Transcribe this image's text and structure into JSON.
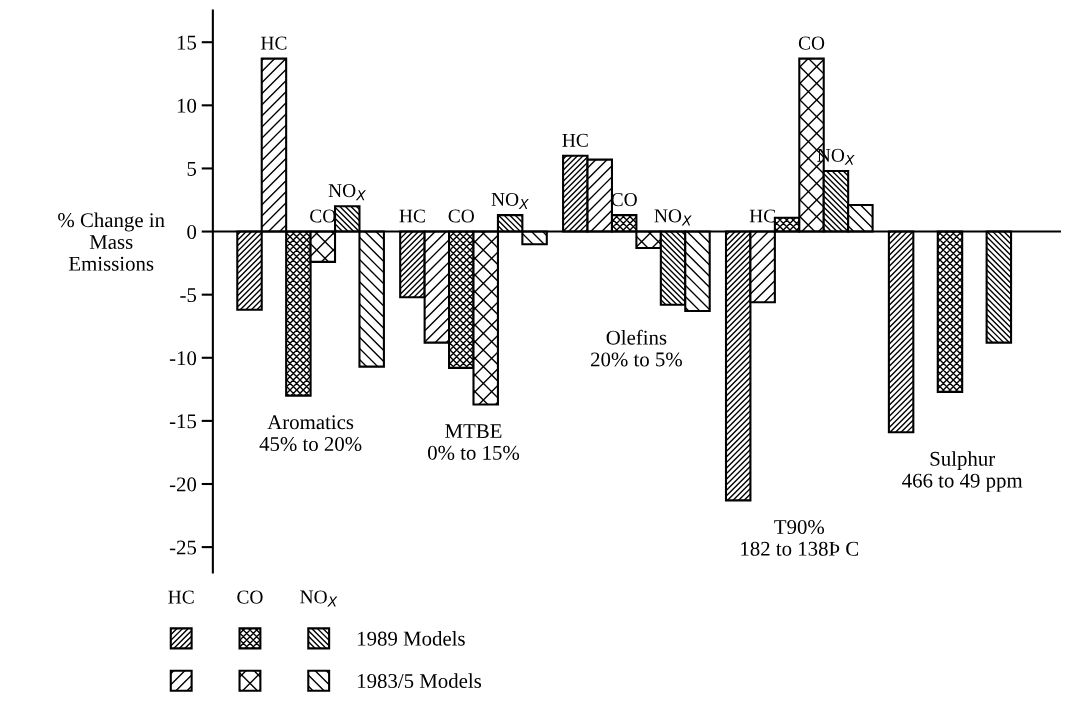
{
  "chart_data": {
    "type": "bar",
    "ylabel": "% Change in\nMass\nEmissions",
    "categories": [
      "Aromatics\n45% to 20%",
      "MTBE\n0% to 15%",
      "Olefins\n20% to 5%",
      "T90%\n182 to 138Þ C",
      "Sulphur\n466 to 49 ppm"
    ],
    "series": [
      {
        "color": "#000000",
        "values": [
          -6.2,
          -5.2,
          6.0,
          -21.3,
          -15.9
        ],
        "value_labels": [
          null,
          "HC",
          "HC",
          null,
          null
        ]
      },
      {
        "color": "#000000",
        "values": [
          13.7,
          -8.8,
          5.7,
          -5.6,
          null
        ],
        "value_labels": [
          "HC",
          null,
          null,
          "HC",
          null
        ]
      },
      {
        "color": "#000000",
        "values": [
          -13.0,
          -10.8,
          1.3,
          1.1,
          -12.7
        ],
        "value_labels": [
          null,
          "CO",
          "CO",
          null,
          null
        ]
      },
      {
        "color": "#000000",
        "values": [
          -2.4,
          -13.7,
          -1.3,
          13.7,
          null
        ],
        "value_labels": [
          "CO",
          null,
          null,
          "CO",
          null
        ]
      },
      {
        "name": "1989 Models",
        "color": "#000000",
        "values": [
          2.0,
          1.3,
          -5.8,
          4.8,
          -8.8
        ],
        "value_labels": [
          "NO$_{X}$",
          "NO$_{X}$",
          "NO$_{X}$",
          "NO$_{X}$",
          null
        ]
      },
      {
        "name": "1983/5 Models",
        "color": "#000000",
        "values": [
          -10.7,
          -1.0,
          -6.3,
          2.1,
          null
        ],
        "value_labels": [
          null,
          null,
          null,
          null,
          null
        ]
      }
    ],
    "ylim": [
      -27,
      17.5
    ],
    "yticks": [
      -25,
      -20,
      -15,
      -10,
      -5,
      0,
      5,
      10,
      15
    ],
    "legend": "bottom left",
    "annotations": [
      "HC",
      "CO",
      "NO$_{X}$"
    ]
  }
}
